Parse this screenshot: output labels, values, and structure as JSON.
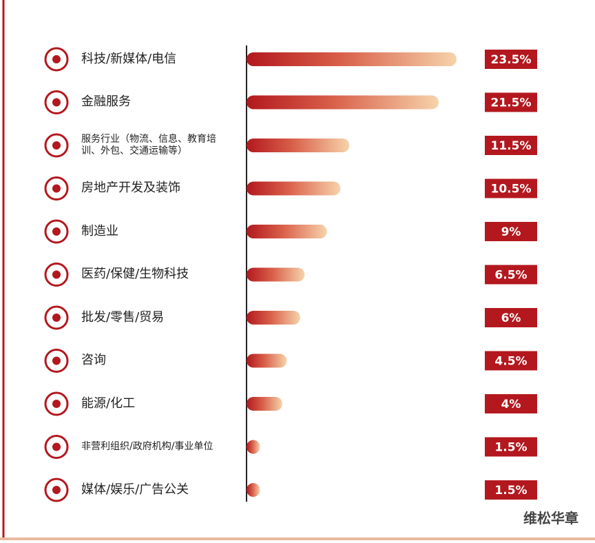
{
  "chart_data": {
    "type": "bar",
    "categories": [
      "科技/新媒体/电信",
      "金融服务",
      "服务行业（物流、信息、教育培训、外包、交通运输等）",
      "房地产开发及装饰",
      "制造业",
      "医药/保健/生物科技",
      "批发/零售/贸易",
      "咨询",
      "能源/化工",
      "非营利组织/政府机构/事业单位",
      "媒体/娱乐/广告公关"
    ],
    "values": [
      23.5,
      21.5,
      11.5,
      10.5,
      9,
      6.5,
      6,
      4.5,
      4,
      1.5,
      1.5
    ],
    "value_labels": [
      "23.5%",
      "21.5%",
      "11.5%",
      "10.5%",
      "9%",
      "6.5%",
      "6%",
      "4.5%",
      "4%",
      "1.5%",
      "1.5%"
    ],
    "color": "#b3181e",
    "watermark": "维松华章"
  }
}
